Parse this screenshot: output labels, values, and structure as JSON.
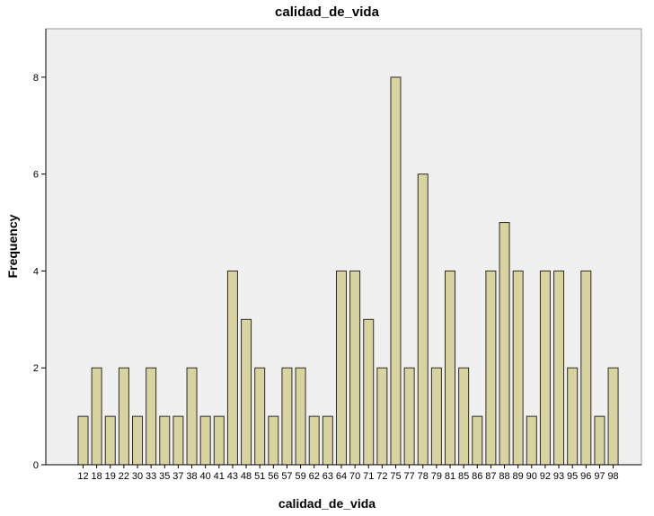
{
  "chart_data": {
    "type": "bar",
    "title": "calidad_de_vida",
    "xlabel": "calidad_de_vida",
    "ylabel": "Frequency",
    "ylim": [
      0,
      9
    ],
    "yticks": [
      0,
      2,
      4,
      6,
      8
    ],
    "grid": false,
    "categories": [
      "12",
      "18",
      "19",
      "22",
      "30",
      "33",
      "35",
      "37",
      "38",
      "40",
      "41",
      "43",
      "48",
      "51",
      "56",
      "57",
      "59",
      "62",
      "63",
      "64",
      "70",
      "71",
      "72",
      "75",
      "77",
      "78",
      "79",
      "81",
      "85",
      "86",
      "87",
      "88",
      "89",
      "90",
      "92",
      "93",
      "95",
      "96",
      "97",
      "98"
    ],
    "values": [
      1,
      2,
      1,
      2,
      1,
      2,
      1,
      1,
      2,
      1,
      1,
      4,
      3,
      2,
      1,
      2,
      2,
      1,
      1,
      4,
      4,
      3,
      2,
      8,
      2,
      6,
      2,
      4,
      2,
      1,
      4,
      5,
      4,
      1,
      4,
      4,
      2,
      4,
      1,
      2
    ],
    "colors": {
      "bar_fill": "#d9d3a0",
      "bar_stroke": "#2b2b2b",
      "plot_background": "#f0f0f0",
      "axis": "#000000"
    }
  }
}
